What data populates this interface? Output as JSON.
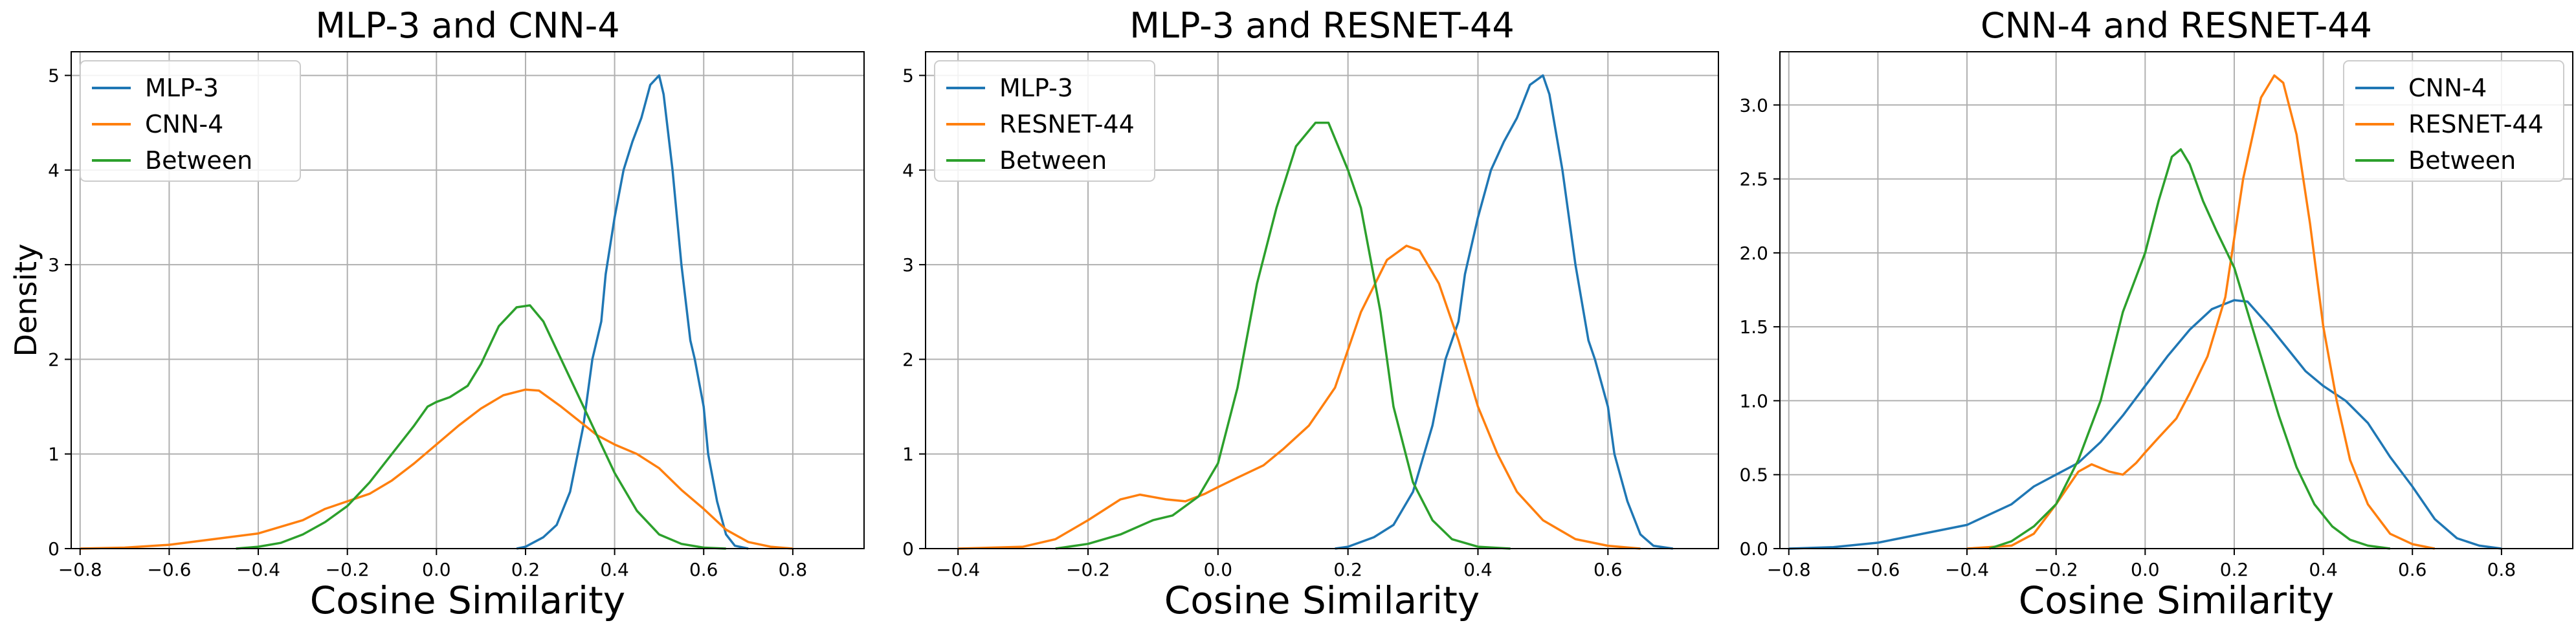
{
  "shared": {
    "xlabel": "Cosine Similarity",
    "ylabel": "Density"
  },
  "chart_data": [
    {
      "type": "line",
      "title": "MLP-3 and CNN-4",
      "xlabel": "Cosine Similarity",
      "ylabel": "Density",
      "xlim": [
        -0.82,
        0.96
      ],
      "ylim": [
        0,
        5.25
      ],
      "xticks": [
        "−0.8",
        "−0.6",
        "−0.4",
        "−0.2",
        "0.0",
        "0.2",
        "0.4",
        "0.6",
        "0.8"
      ],
      "yticks": [
        "0",
        "1",
        "2",
        "3",
        "4",
        "5"
      ],
      "grid": true,
      "legend": "upper left",
      "series": [
        {
          "name": "MLP-3",
          "color": "#1f77b4",
          "x": [
            0.18,
            0.2,
            0.24,
            0.27,
            0.3,
            0.33,
            0.35,
            0.37,
            0.38,
            0.4,
            0.42,
            0.44,
            0.46,
            0.48,
            0.5,
            0.51,
            0.53,
            0.55,
            0.57,
            0.58,
            0.6,
            0.61,
            0.63,
            0.65,
            0.67,
            0.7
          ],
          "y": [
            0,
            0.02,
            0.12,
            0.25,
            0.6,
            1.3,
            2.0,
            2.4,
            2.9,
            3.5,
            4.0,
            4.3,
            4.55,
            4.9,
            5.0,
            4.8,
            4.0,
            3.0,
            2.2,
            2.0,
            1.5,
            1.0,
            0.5,
            0.15,
            0.03,
            0
          ]
        },
        {
          "name": "CNN-4",
          "color": "#ff7f0e",
          "x": [
            -0.8,
            -0.7,
            -0.6,
            -0.5,
            -0.4,
            -0.3,
            -0.25,
            -0.2,
            -0.15,
            -0.1,
            -0.05,
            0.0,
            0.05,
            0.1,
            0.15,
            0.2,
            0.23,
            0.28,
            0.32,
            0.36,
            0.4,
            0.45,
            0.5,
            0.55,
            0.6,
            0.65,
            0.7,
            0.75,
            0.8
          ],
          "y": [
            0,
            0.01,
            0.04,
            0.1,
            0.16,
            0.3,
            0.42,
            0.5,
            0.58,
            0.72,
            0.9,
            1.1,
            1.3,
            1.48,
            1.62,
            1.68,
            1.67,
            1.5,
            1.35,
            1.2,
            1.1,
            1.0,
            0.85,
            0.62,
            0.42,
            0.2,
            0.07,
            0.02,
            0
          ]
        },
        {
          "name": "Between",
          "color": "#2ca02c",
          "x": [
            -0.45,
            -0.4,
            -0.35,
            -0.3,
            -0.25,
            -0.2,
            -0.15,
            -0.1,
            -0.05,
            -0.02,
            0.0,
            0.03,
            0.07,
            0.1,
            0.14,
            0.18,
            0.21,
            0.24,
            0.28,
            0.32,
            0.36,
            0.4,
            0.45,
            0.5,
            0.55,
            0.6,
            0.65
          ],
          "y": [
            0,
            0.02,
            0.06,
            0.15,
            0.28,
            0.45,
            0.7,
            1.0,
            1.3,
            1.5,
            1.55,
            1.6,
            1.72,
            1.95,
            2.35,
            2.55,
            2.57,
            2.4,
            2.0,
            1.6,
            1.2,
            0.8,
            0.4,
            0.15,
            0.05,
            0.01,
            0
          ]
        }
      ]
    },
    {
      "type": "line",
      "title": "MLP-3 and RESNET-44",
      "xlabel": "Cosine Similarity",
      "ylabel": "",
      "xlim": [
        -0.45,
        0.77
      ],
      "ylim": [
        0,
        5.25
      ],
      "xticks": [
        "−0.4",
        "−0.2",
        "0.0",
        "0.2",
        "0.4",
        "0.6"
      ],
      "yticks": [
        "0",
        "1",
        "2",
        "3",
        "4",
        "5"
      ],
      "grid": true,
      "legend": "upper left",
      "series": [
        {
          "name": "MLP-3",
          "color": "#1f77b4",
          "x": [
            0.18,
            0.2,
            0.24,
            0.27,
            0.3,
            0.33,
            0.35,
            0.37,
            0.38,
            0.4,
            0.42,
            0.44,
            0.46,
            0.48,
            0.5,
            0.51,
            0.53,
            0.55,
            0.57,
            0.58,
            0.6,
            0.61,
            0.63,
            0.65,
            0.67,
            0.7
          ],
          "y": [
            0,
            0.02,
            0.12,
            0.25,
            0.6,
            1.3,
            2.0,
            2.4,
            2.9,
            3.5,
            4.0,
            4.3,
            4.55,
            4.9,
            5.0,
            4.8,
            4.0,
            3.0,
            2.2,
            2.0,
            1.5,
            1.0,
            0.5,
            0.15,
            0.03,
            0
          ]
        },
        {
          "name": "RESNET-44",
          "color": "#ff7f0e",
          "x": [
            -0.4,
            -0.3,
            -0.25,
            -0.2,
            -0.15,
            -0.12,
            -0.08,
            -0.05,
            -0.02,
            0.0,
            0.03,
            0.07,
            0.1,
            0.14,
            0.18,
            0.22,
            0.26,
            0.29,
            0.31,
            0.34,
            0.37,
            0.4,
            0.43,
            0.46,
            0.5,
            0.55,
            0.6,
            0.65
          ],
          "y": [
            0,
            0.02,
            0.1,
            0.3,
            0.52,
            0.57,
            0.52,
            0.5,
            0.58,
            0.65,
            0.75,
            0.88,
            1.05,
            1.3,
            1.7,
            2.5,
            3.05,
            3.2,
            3.15,
            2.8,
            2.2,
            1.5,
            1.0,
            0.6,
            0.3,
            0.1,
            0.03,
            0
          ]
        },
        {
          "name": "Between",
          "color": "#2ca02c",
          "x": [
            -0.25,
            -0.2,
            -0.15,
            -0.1,
            -0.07,
            -0.03,
            0.0,
            0.03,
            0.06,
            0.09,
            0.12,
            0.15,
            0.17,
            0.2,
            0.22,
            0.25,
            0.27,
            0.3,
            0.33,
            0.36,
            0.4,
            0.45
          ],
          "y": [
            0,
            0.05,
            0.15,
            0.3,
            0.35,
            0.55,
            0.9,
            1.7,
            2.8,
            3.6,
            4.25,
            4.5,
            4.5,
            4.0,
            3.6,
            2.5,
            1.5,
            0.7,
            0.3,
            0.1,
            0.02,
            0
          ]
        }
      ]
    },
    {
      "type": "line",
      "title": "CNN-4 and RESNET-44",
      "xlabel": "Cosine Similarity",
      "ylabel": "",
      "xlim": [
        -0.82,
        0.96
      ],
      "ylim": [
        0,
        3.36
      ],
      "xticks": [
        "−0.8",
        "−0.6",
        "−0.4",
        "−0.2",
        "0.0",
        "0.2",
        "0.4",
        "0.6",
        "0.8"
      ],
      "yticks": [
        "0.0",
        "0.5",
        "1.0",
        "1.5",
        "2.0",
        "2.5",
        "3.0"
      ],
      "grid": true,
      "legend": "upper right",
      "series": [
        {
          "name": "CNN-4",
          "color": "#1f77b4",
          "x": [
            -0.8,
            -0.7,
            -0.6,
            -0.5,
            -0.4,
            -0.3,
            -0.25,
            -0.2,
            -0.15,
            -0.1,
            -0.05,
            0.0,
            0.05,
            0.1,
            0.15,
            0.2,
            0.23,
            0.28,
            0.32,
            0.36,
            0.4,
            0.45,
            0.5,
            0.55,
            0.6,
            0.65,
            0.7,
            0.75,
            0.8
          ],
          "y": [
            0,
            0.01,
            0.04,
            0.1,
            0.16,
            0.3,
            0.42,
            0.5,
            0.58,
            0.72,
            0.9,
            1.1,
            1.3,
            1.48,
            1.62,
            1.68,
            1.67,
            1.5,
            1.35,
            1.2,
            1.1,
            1.0,
            0.85,
            0.62,
            0.42,
            0.2,
            0.07,
            0.02,
            0
          ]
        },
        {
          "name": "RESNET-44",
          "color": "#ff7f0e",
          "x": [
            -0.4,
            -0.3,
            -0.25,
            -0.2,
            -0.15,
            -0.12,
            -0.08,
            -0.05,
            -0.02,
            0.0,
            0.03,
            0.07,
            0.1,
            0.14,
            0.18,
            0.22,
            0.26,
            0.29,
            0.31,
            0.34,
            0.37,
            0.4,
            0.43,
            0.46,
            0.5,
            0.55,
            0.6,
            0.65
          ],
          "y": [
            0,
            0.02,
            0.1,
            0.3,
            0.52,
            0.57,
            0.52,
            0.5,
            0.58,
            0.65,
            0.75,
            0.88,
            1.05,
            1.3,
            1.7,
            2.5,
            3.05,
            3.2,
            3.15,
            2.8,
            2.2,
            1.5,
            1.0,
            0.6,
            0.3,
            0.1,
            0.03,
            0
          ]
        },
        {
          "name": "Between",
          "color": "#2ca02c",
          "x": [
            -0.35,
            -0.3,
            -0.25,
            -0.2,
            -0.15,
            -0.1,
            -0.05,
            0.0,
            0.03,
            0.06,
            0.08,
            0.1,
            0.13,
            0.16,
            0.2,
            0.23,
            0.26,
            0.3,
            0.34,
            0.38,
            0.42,
            0.46,
            0.5,
            0.55
          ],
          "y": [
            0,
            0.05,
            0.15,
            0.3,
            0.6,
            1.0,
            1.6,
            2.0,
            2.35,
            2.65,
            2.7,
            2.6,
            2.35,
            2.15,
            1.9,
            1.6,
            1.3,
            0.9,
            0.55,
            0.3,
            0.15,
            0.06,
            0.02,
            0
          ]
        }
      ]
    }
  ]
}
